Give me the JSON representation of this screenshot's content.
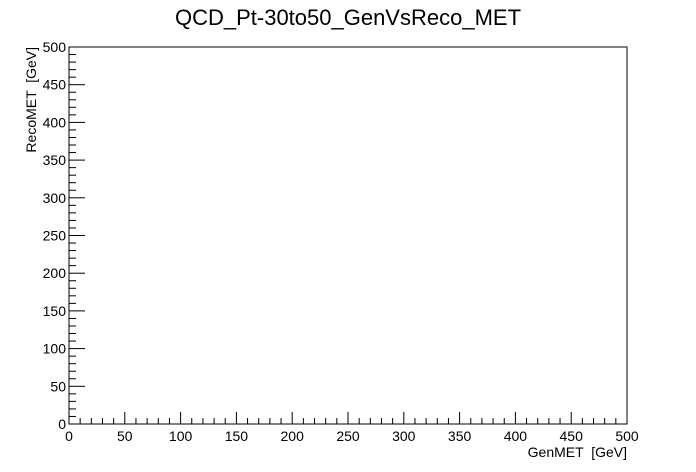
{
  "chart_data": {
    "type": "scatter",
    "title": "QCD_Pt-30to50_GenVsReco_MET",
    "xlabel": "GenMET  [GeV]",
    "ylabel": "RecoMET  [GeV]",
    "xlim": [
      0,
      500
    ],
    "ylim": [
      0,
      500
    ],
    "x_major_ticks": [
      0,
      50,
      100,
      150,
      200,
      250,
      300,
      350,
      400,
      450,
      500
    ],
    "y_major_ticks": [
      0,
      50,
      100,
      150,
      200,
      250,
      300,
      350,
      400,
      450,
      500
    ],
    "x_minor_step": 10,
    "y_minor_step": 10,
    "grid": false,
    "points": []
  }
}
